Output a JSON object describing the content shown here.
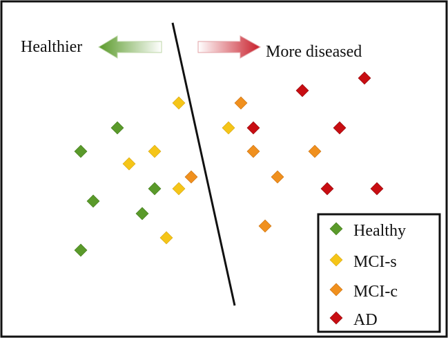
{
  "labels": {
    "left": "Healthier",
    "right": "More diseased"
  },
  "colors": {
    "healthy": "#5a9a2a",
    "mci_s": "#f5c518",
    "mci_c": "#f0901e",
    "ad": "#c80d12"
  },
  "legend": [
    {
      "key": "healthy",
      "label": "Healthy"
    },
    {
      "key": "mci_s",
      "label": "MCI-s"
    },
    {
      "key": "mci_c",
      "label": "MCI-c"
    },
    {
      "key": "ad",
      "label": "AD"
    }
  ]
}
